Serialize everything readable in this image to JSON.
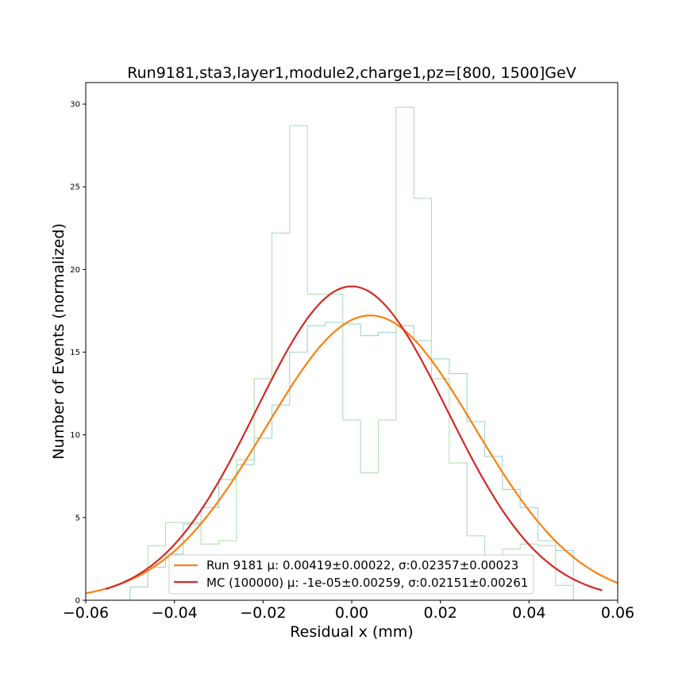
{
  "chart_data": {
    "type": "line",
    "title": "Run9181,sta3,layer1,module2,charge1,pz=[800, 1500]GeV",
    "xlabel": "Residual x (mm)",
    "ylabel": "Number of Events (normalized)",
    "xlim": [
      -0.06,
      0.06
    ],
    "ylim": [
      0,
      31.3
    ],
    "grid": false,
    "legend_position": "bottom-center",
    "xticks": [
      -0.06,
      -0.04,
      -0.02,
      0.0,
      0.02,
      0.04,
      0.06
    ],
    "xtick_labels": [
      "−0.06",
      "−0.04",
      "−0.02",
      "0.00",
      "0.02",
      "0.04",
      "0.06"
    ],
    "yticks": [
      0,
      5,
      10,
      15,
      20,
      25,
      30
    ],
    "ytick_labels": [
      "0",
      "5",
      "10",
      "15",
      "20",
      "25",
      "30"
    ],
    "histograms": [
      {
        "color": "#9ed6cf",
        "bin_edges": [
          -0.05,
          -0.046,
          -0.042,
          -0.038,
          -0.034,
          -0.03,
          -0.026,
          -0.022,
          -0.018,
          -0.014,
          -0.01,
          -0.006,
          -0.002,
          0.002,
          0.006,
          0.01,
          0.014,
          0.018,
          0.022,
          0.026,
          0.03,
          0.034,
          0.038,
          0.042,
          0.046,
          0.05
        ],
        "values": [
          0.8,
          2.0,
          2.8,
          4.6,
          5.6,
          7.3,
          8.2,
          9.8,
          11.8,
          15.0,
          16.6,
          16.8,
          16.7,
          16.0,
          16.2,
          16.6,
          15.7,
          14.6,
          13.7,
          10.8,
          8.7,
          6.7,
          5.6,
          3.6,
          3.0
        ]
      },
      {
        "color": "#b2dfb2",
        "bin_edges": [
          -0.05,
          -0.046,
          -0.042,
          -0.038,
          -0.034,
          -0.03,
          -0.026,
          -0.022,
          -0.018,
          -0.014,
          -0.01,
          -0.006,
          -0.002,
          0.002,
          0.006,
          0.01,
          0.014,
          0.018,
          0.022,
          0.026,
          0.03,
          0.034,
          0.038,
          0.042,
          0.046,
          0.05
        ],
        "values": [
          0.8,
          3.3,
          4.7,
          4.7,
          3.4,
          3.6,
          8.5,
          13.4,
          22.2,
          28.7,
          18.5,
          18.5,
          10.9,
          7.7,
          10.9,
          29.8,
          24.3,
          13.4,
          8.3,
          3.9,
          1.3,
          3.1,
          3.4,
          3.3,
          0.9
        ]
      }
    ],
    "series": [
      {
        "name": "Run 9181 μ: 0.00419±0.00022, σ:0.02357±0.00023",
        "color": "#ff7f0e",
        "fit": "gaussian",
        "amplitude": 17.22,
        "mu": 0.00419,
        "sigma": 0.02357,
        "x_range": [
          -0.06,
          0.06
        ]
      },
      {
        "name": "MC (100000) μ: -1e-05±0.00259, σ:0.02151±0.00261",
        "color": "#d62728",
        "fit": "gaussian",
        "amplitude": 18.98,
        "mu": -1e-05,
        "sigma": 0.02151,
        "x_range": [
          -0.0555,
          0.0565
        ]
      }
    ]
  }
}
